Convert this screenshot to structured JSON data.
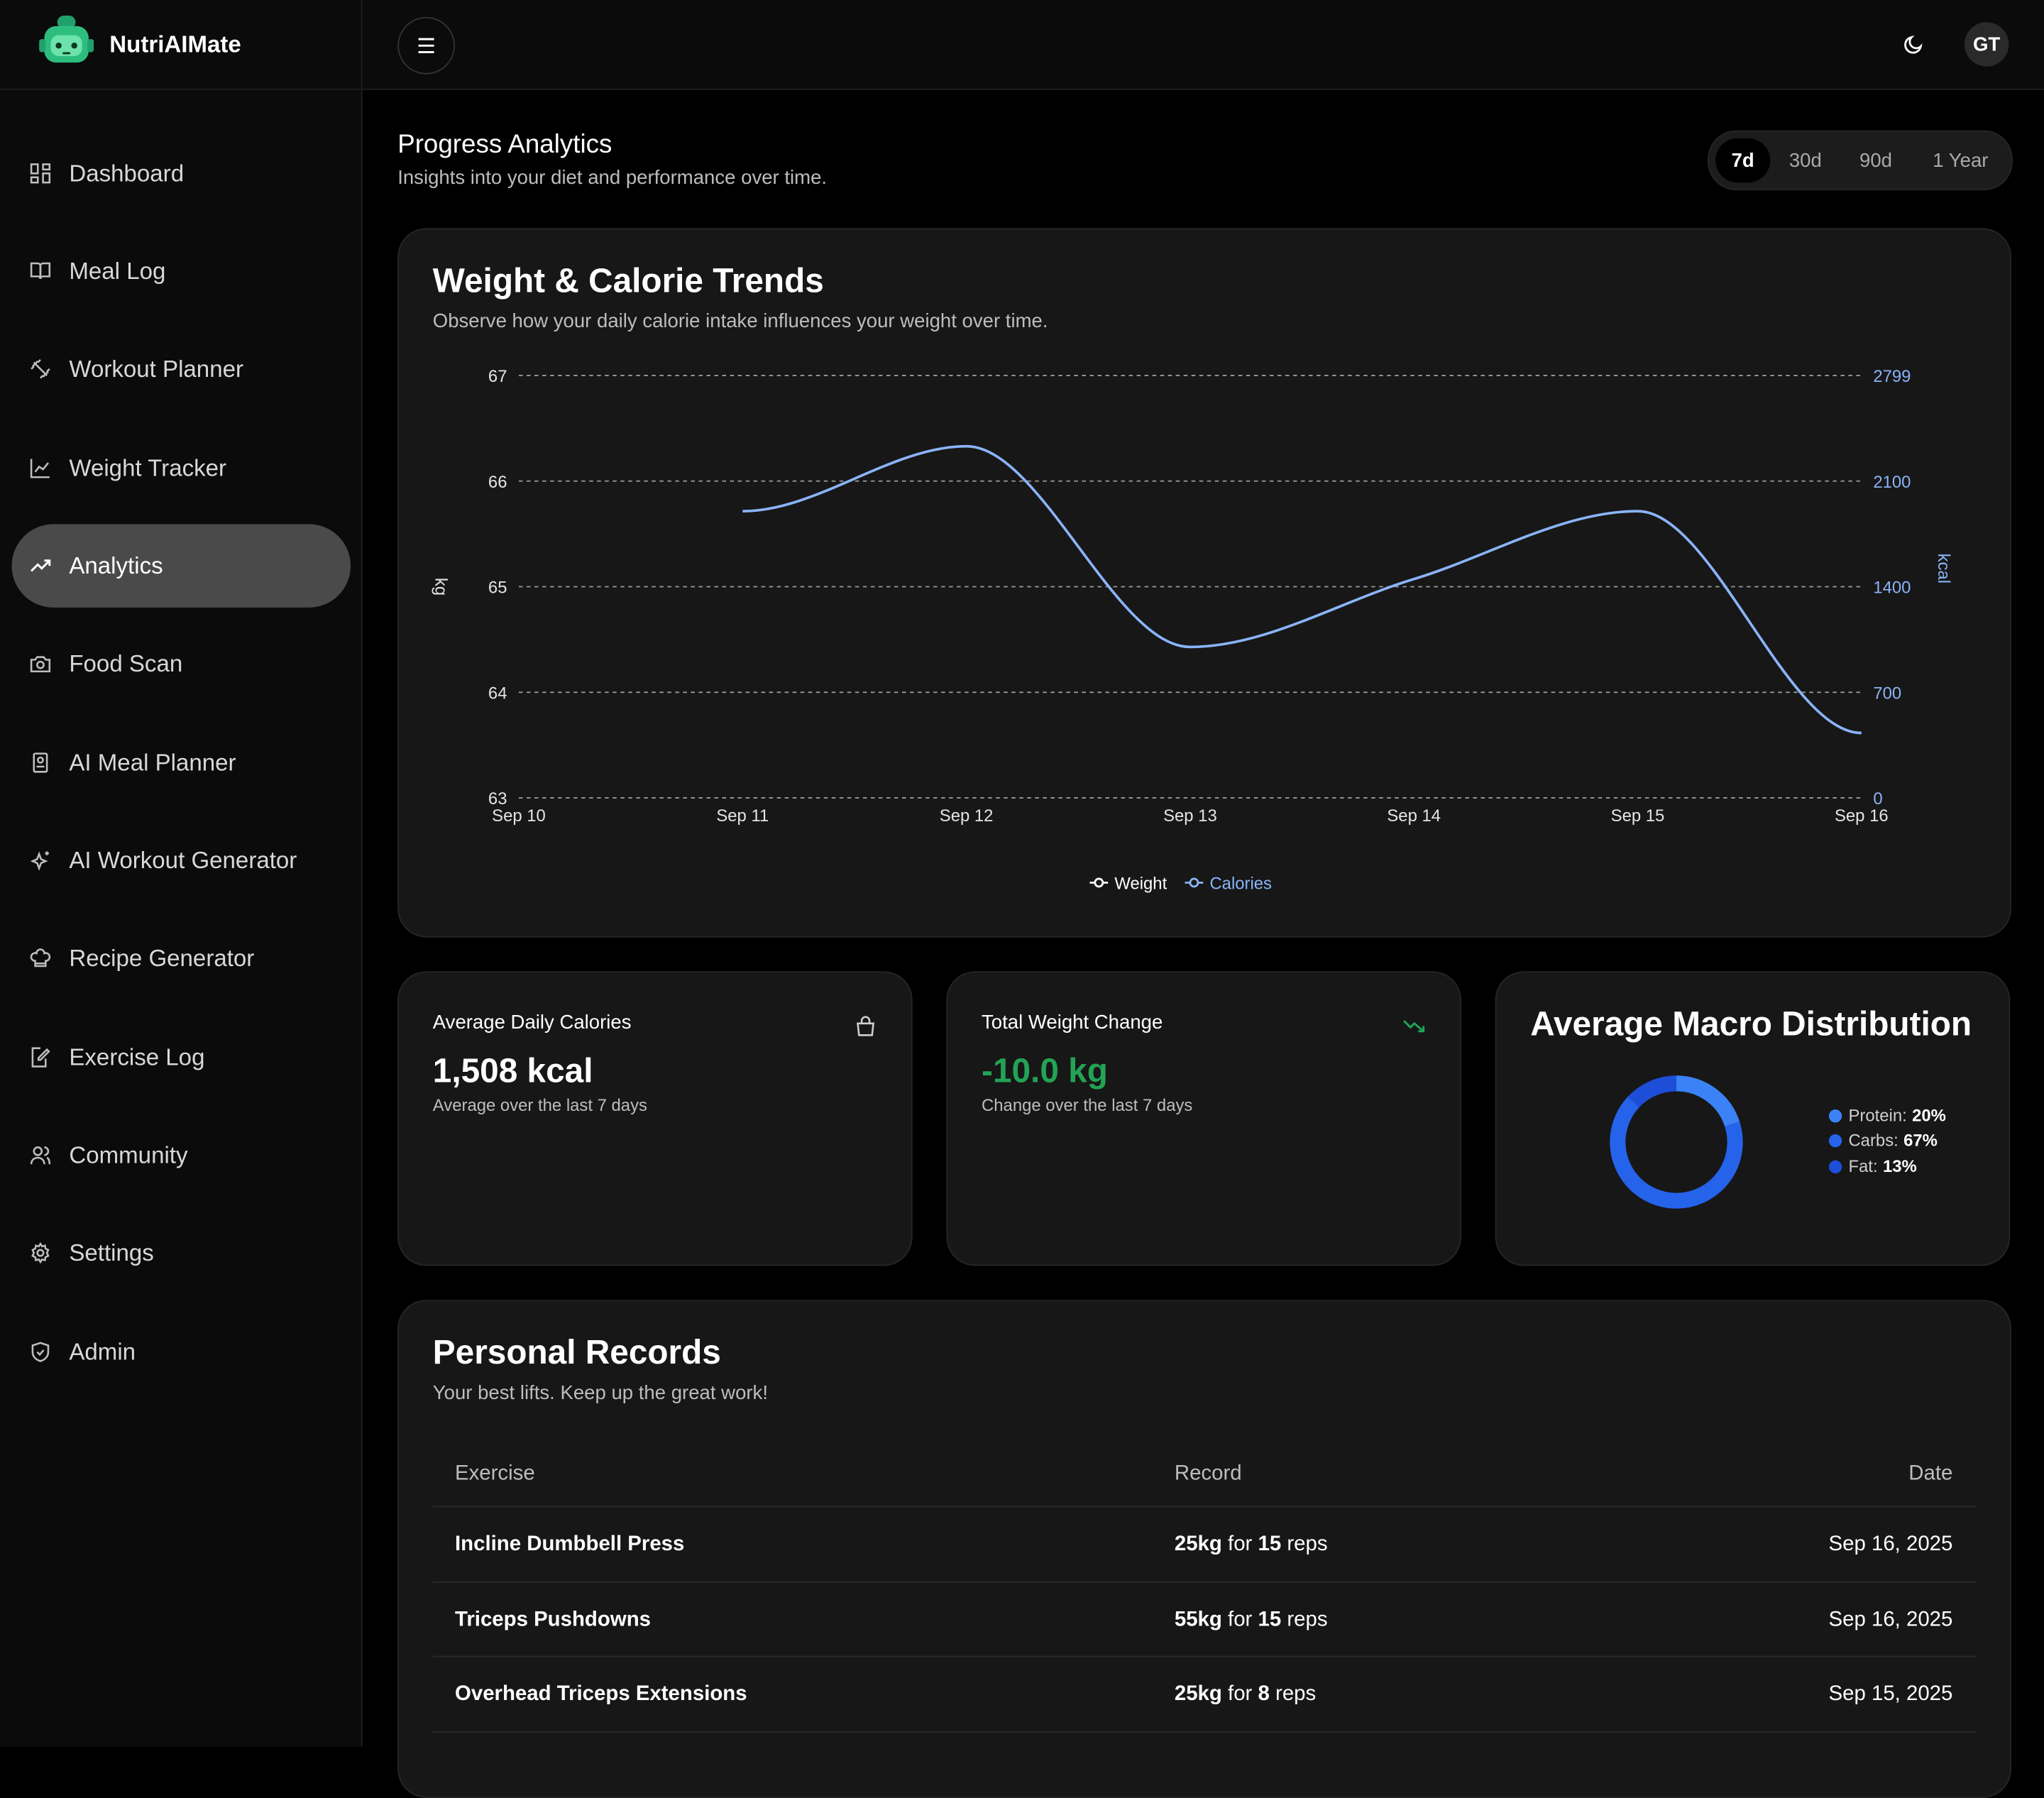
{
  "app": {
    "name": "NutriAIMate"
  },
  "sidebar": {
    "items": [
      {
        "label": "Dashboard",
        "icon": "dashboard-icon"
      },
      {
        "label": "Meal Log",
        "icon": "book-icon"
      },
      {
        "label": "Workout Planner",
        "icon": "dumbbell-icon"
      },
      {
        "label": "Weight Tracker",
        "icon": "line-chart-icon"
      },
      {
        "label": "Analytics",
        "icon": "trending-up-icon",
        "active": true
      },
      {
        "label": "Food Scan",
        "icon": "camera-icon"
      },
      {
        "label": "AI Meal Planner",
        "icon": "notebook-icon"
      },
      {
        "label": "AI Workout Generator",
        "icon": "sparkles-icon"
      },
      {
        "label": "Recipe Generator",
        "icon": "chef-hat-icon"
      },
      {
        "label": "Exercise Log",
        "icon": "edit-file-icon"
      },
      {
        "label": "Community",
        "icon": "users-icon"
      },
      {
        "label": "Settings",
        "icon": "gear-icon"
      },
      {
        "label": "Admin",
        "icon": "shield-icon"
      }
    ]
  },
  "topbar": {
    "avatar_initials": "GT"
  },
  "page": {
    "title": "Progress Analytics",
    "subtitle": "Insights into your diet and performance over time.",
    "ranges": [
      "7d",
      "30d",
      "90d",
      "1 Year"
    ],
    "selected_range": "7d"
  },
  "trends": {
    "title": "Weight & Calorie Trends",
    "subtitle": "Observe how your daily calorie intake influences your weight over time.",
    "legend": [
      "Weight",
      "Calories"
    ]
  },
  "chart_data": {
    "type": "line",
    "x": [
      "Sep 10",
      "Sep 11",
      "Sep 12",
      "Sep 13",
      "Sep 14",
      "Sep 15",
      "Sep 16"
    ],
    "series": [
      {
        "name": "Weight",
        "axis": "left",
        "values": [
          null,
          null,
          null,
          null,
          null,
          null,
          null
        ],
        "color": "#ffffff"
      },
      {
        "name": "Calories",
        "axis": "right",
        "values": [
          null,
          1900,
          2330,
          1000,
          1450,
          1900,
          430
        ],
        "color": "#8ab4f8"
      }
    ],
    "y_left": {
      "label": "kg",
      "ticks": [
        "67",
        "66",
        "65",
        "64",
        "63"
      ],
      "range": [
        63,
        67
      ]
    },
    "y_right": {
      "label": "kcal",
      "ticks": [
        "2799",
        "2100",
        "1400",
        "700",
        "0"
      ],
      "range": [
        0,
        2799
      ]
    },
    "grid": "dashed-horizontal",
    "legend_position": "bottom-center"
  },
  "stats": [
    {
      "label": "Average Daily Calories",
      "value": "1,508 kcal",
      "note": "Average over the last 7 days",
      "icon": "bag-icon",
      "color": "#ffffff"
    },
    {
      "label": "Total Weight Change",
      "value": "-10.0 kg",
      "note": "Change over the last 7 days",
      "icon": "trending-down-icon",
      "color": "#22a355"
    }
  ],
  "macros": {
    "title": "Average Macro Distribution",
    "items": [
      {
        "label": "Protein:",
        "value": "20%",
        "fraction": 0.2,
        "color": "#3b82f6"
      },
      {
        "label": "Carbs:",
        "value": "67%",
        "fraction": 0.67,
        "color": "#2563eb"
      },
      {
        "label": "Fat:",
        "value": "13%",
        "fraction": 0.13,
        "color": "#1d4ed8"
      }
    ]
  },
  "records": {
    "title": "Personal Records",
    "subtitle": "Your best lifts. Keep up the great work!",
    "headers": [
      "Exercise",
      "Record",
      "Date"
    ],
    "rows": [
      {
        "exercise": "Incline Dumbbell Press",
        "weight": "25kg",
        "for": "for",
        "reps": "15",
        "reps_label": "reps",
        "date": "Sep 16, 2025"
      },
      {
        "exercise": "Triceps Pushdowns",
        "weight": "55kg",
        "for": "for",
        "reps": "15",
        "reps_label": "reps",
        "date": "Sep 16, 2025"
      },
      {
        "exercise": "Overhead Triceps Extensions",
        "weight": "25kg",
        "for": "for",
        "reps": "8",
        "reps_label": "reps",
        "date": "Sep 15, 2025"
      }
    ]
  }
}
